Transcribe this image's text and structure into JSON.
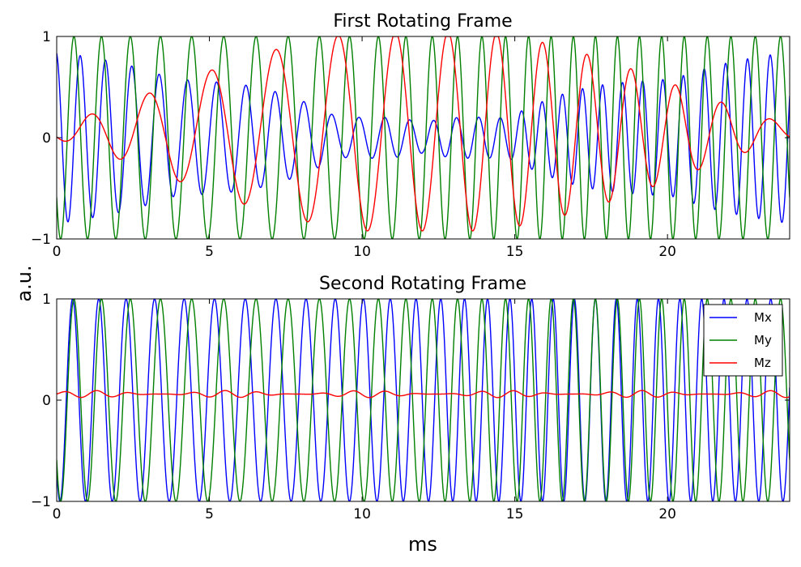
{
  "figure": {
    "ylabel": "a.u.",
    "xlabel": "ms"
  },
  "chart_data": [
    {
      "type": "line",
      "title": "First Rotating Frame",
      "xlim": [
        0,
        24
      ],
      "ylim": [
        -1,
        1
      ],
      "xticks": [
        0,
        5,
        10,
        15,
        20
      ],
      "xtick_labels": [
        "0",
        "5",
        "10",
        "15",
        "20"
      ],
      "yticks": [
        -1,
        0,
        1
      ],
      "ytick_labels": [
        "−1",
        "0",
        "1"
      ],
      "grid": false,
      "legend": false,
      "series": [
        {
          "key": "mx",
          "color": "#0000ff",
          "model": "first_mx"
        },
        {
          "key": "my",
          "color": "#008000",
          "model": "first_my"
        },
        {
          "key": "mz",
          "color": "#ff0000",
          "model": "first_mz"
        }
      ]
    },
    {
      "type": "line",
      "title": "Second Rotating Frame",
      "xlim": [
        0,
        24
      ],
      "ylim": [
        -1,
        1
      ],
      "xticks": [
        0,
        5,
        10,
        15,
        20
      ],
      "xtick_labels": [
        "0",
        "5",
        "10",
        "15",
        "20"
      ],
      "yticks": [
        -1,
        0,
        1
      ],
      "ytick_labels": [
        "−1",
        "0",
        "1"
      ],
      "grid": false,
      "legend": true,
      "legend_position": "top-right",
      "series": [
        {
          "name": "Mx",
          "key": "mx",
          "color": "#0000ff",
          "model": "second_mx"
        },
        {
          "name": "My",
          "key": "my",
          "color": "#008000",
          "model": "second_my"
        },
        {
          "name": "Mz",
          "key": "mz",
          "color": "#ff0000",
          "model": "second_mz"
        }
      ]
    }
  ]
}
